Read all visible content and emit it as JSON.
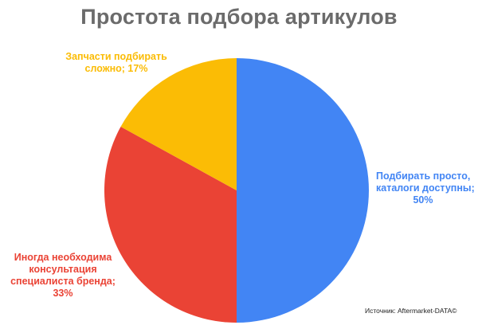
{
  "colors": {
    "blue": "#4285f4",
    "red": "#ea4335",
    "yellow": "#fbbc05",
    "title": "#6b6b6b"
  },
  "source": "Источник: Aftermarket-DATA©",
  "chart_data": {
    "type": "pie",
    "title": "Простота подбора артикулов",
    "slices": [
      {
        "label_lines": [
          "Подбирать просто,",
          "каталоги доступны;",
          "50%"
        ],
        "value": 50,
        "color": "#4285f4"
      },
      {
        "label_lines": [
          "Иногда необходима",
          "консультация",
          "специалиста бренда;",
          "33%"
        ],
        "value": 33,
        "color": "#ea4335"
      },
      {
        "label_lines": [
          "Запчасти подбирать",
          "сложно; 17%"
        ],
        "value": 17,
        "color": "#fbbc05"
      }
    ]
  }
}
